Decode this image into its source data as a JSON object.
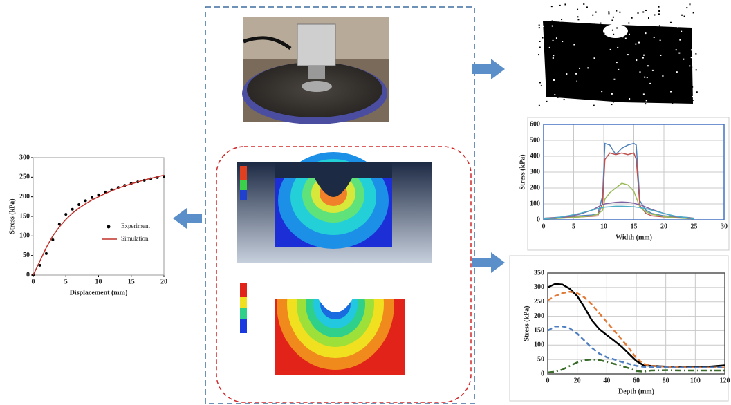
{
  "chart_data": [
    {
      "type": "line",
      "x_label": "Displacement (mm)",
      "y_label": "Stress (kPa)",
      "x": [
        0,
        1,
        2,
        3,
        4,
        5,
        6,
        7,
        8,
        9,
        10,
        11,
        12,
        13,
        14,
        15,
        16,
        17,
        18,
        19,
        20
      ],
      "series": [
        {
          "name": "Experiment",
          "color": "#000000",
          "style": "markers",
          "values": [
            0,
            25,
            55,
            90,
            130,
            155,
            168,
            180,
            190,
            198,
            205,
            212,
            218,
            224,
            229,
            234,
            238,
            242,
            246,
            249,
            252
          ]
        },
        {
          "name": "Simulation",
          "color": "#c0302a",
          "style": "solid",
          "values": [
            0,
            35,
            70,
            100,
            123,
            142,
            158,
            171,
            182,
            192,
            200,
            208,
            215,
            222,
            228,
            233,
            238,
            243,
            247,
            251,
            255
          ]
        }
      ],
      "xlim": [
        0,
        20
      ],
      "xticks": [
        0,
        5,
        10,
        15,
        20
      ],
      "ylim": [
        0,
        300
      ],
      "yticks": [
        0,
        50,
        100,
        150,
        200,
        250,
        300
      ],
      "grid": false,
      "legend": "lower right"
    },
    {
      "type": "line",
      "x_label": "Width (mm)",
      "y_label": "Stress (kPa)",
      "x": [
        0,
        2,
        4,
        6,
        8,
        9,
        9.8,
        10.2,
        11,
        12,
        13,
        14,
        15,
        15.4,
        16,
        17,
        18,
        20,
        22,
        24,
        25
      ],
      "series": [
        {
          "color": "#4f81bd",
          "style": "solid",
          "values": [
            10,
            15,
            20,
            25,
            30,
            35,
            150,
            480,
            470,
            410,
            450,
            470,
            480,
            470,
            120,
            60,
            40,
            25,
            20,
            15,
            10
          ]
        },
        {
          "color": "#c0504d",
          "style": "solid",
          "values": [
            10,
            12,
            15,
            18,
            22,
            25,
            100,
            380,
            420,
            410,
            420,
            410,
            420,
            380,
            90,
            40,
            25,
            18,
            15,
            12,
            10
          ]
        },
        {
          "color": "#9bbb59",
          "style": "solid",
          "values": [
            5,
            8,
            12,
            18,
            25,
            35,
            60,
            130,
            170,
            200,
            230,
            220,
            180,
            140,
            80,
            50,
            35,
            20,
            12,
            8,
            5
          ]
        },
        {
          "color": "#8064a2",
          "style": "solid",
          "values": [
            5,
            10,
            20,
            35,
            60,
            80,
            95,
            100,
            105,
            110,
            112,
            110,
            105,
            100,
            95,
            80,
            65,
            40,
            20,
            10,
            5
          ]
        },
        {
          "color": "#4bacc6",
          "style": "solid",
          "values": [
            5,
            12,
            25,
            40,
            60,
            70,
            78,
            80,
            82,
            85,
            85,
            84,
            82,
            80,
            78,
            70,
            60,
            40,
            22,
            12,
            5
          ]
        }
      ],
      "xlim": [
        0,
        30
      ],
      "xticks": [
        0,
        5,
        10,
        15,
        20,
        25,
        30
      ],
      "ylim": [
        0,
        600
      ],
      "yticks": [
        0,
        100,
        200,
        300,
        400,
        500,
        600
      ],
      "grid": true
    },
    {
      "type": "line",
      "x_label": "Depth (mm)",
      "y_label": "Stress (kPa)",
      "x": [
        0,
        5,
        10,
        15,
        20,
        25,
        30,
        35,
        40,
        45,
        50,
        55,
        60,
        65,
        70,
        80,
        90,
        100,
        110,
        120
      ],
      "series": [
        {
          "color": "#000000",
          "style": "solid",
          "values": [
            300,
            312,
            310,
            295,
            270,
            230,
            185,
            155,
            135,
            115,
            95,
            70,
            45,
            30,
            28,
            26,
            25,
            25,
            26,
            30
          ]
        },
        {
          "color": "#e07b39",
          "style": "dashed",
          "values": [
            255,
            270,
            280,
            285,
            280,
            265,
            240,
            210,
            180,
            150,
            120,
            90,
            55,
            35,
            28,
            25,
            23,
            22,
            22,
            22
          ]
        },
        {
          "color": "#4f7fc0",
          "style": "dashed",
          "values": [
            150,
            165,
            165,
            158,
            140,
            115,
            90,
            70,
            58,
            50,
            42,
            35,
            28,
            25,
            24,
            23,
            22,
            22,
            22,
            22
          ]
        },
        {
          "color": "#3a6b2a",
          "style": "dashdot",
          "values": [
            5,
            8,
            15,
            28,
            40,
            48,
            50,
            48,
            42,
            35,
            28,
            20,
            10,
            8,
            12,
            13,
            12,
            12,
            12,
            12
          ]
        }
      ],
      "xlim": [
        0,
        120
      ],
      "xticks": [
        0,
        20,
        40,
        60,
        80,
        100,
        120
      ],
      "ylim": [
        0,
        350
      ],
      "yticks": [
        0,
        50,
        100,
        150,
        200,
        250,
        300,
        350
      ],
      "grid": true
    }
  ]
}
